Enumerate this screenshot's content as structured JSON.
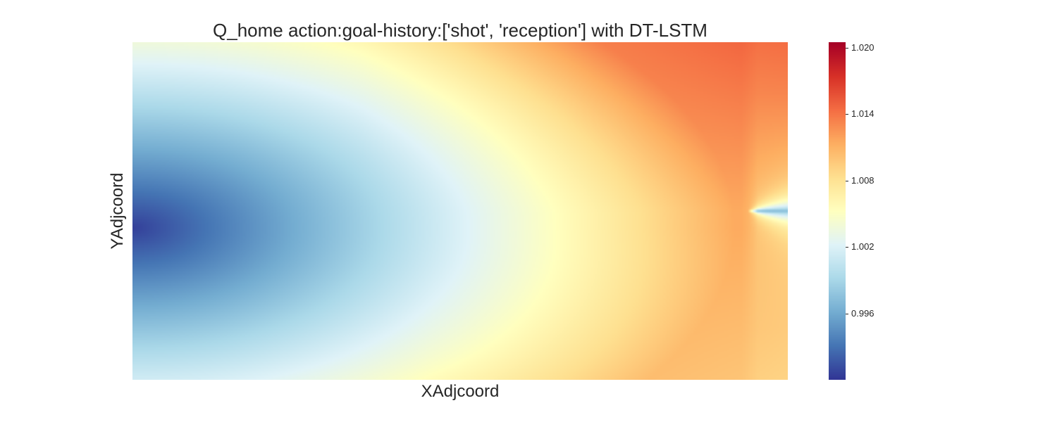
{
  "chart_data": {
    "type": "heatmap",
    "title": "Q_home action:goal-history:['shot', 'reception'] with DT-LSTM",
    "xlabel": "XAdjcoord",
    "ylabel": "YAdjcoord",
    "colormap": "RdYlBu_r",
    "colorbar": {
      "vmin": 0.99,
      "vmax": 1.0205,
      "ticks": [
        1.02,
        1.014,
        1.008,
        1.002,
        0.996
      ],
      "tick_labels": [
        "1.020",
        "1.014",
        "1.008",
        "1.002",
        "0.996"
      ],
      "colors": [
        "#313695",
        "#4575b4",
        "#74add1",
        "#abd9e9",
        "#e0f3f8",
        "#ffffbf",
        "#fee090",
        "#fdae61",
        "#f46d43",
        "#d73027",
        "#a50026"
      ]
    },
    "x_ticks_shown": false,
    "y_ticks_shown": false,
    "field_description": {
      "min_value": 0.99,
      "min_location": "left edge, slightly below middle",
      "max_value": 1.0205,
      "max_location": "upper right",
      "singularity_location": "right side near the goal, mid-height"
    }
  }
}
